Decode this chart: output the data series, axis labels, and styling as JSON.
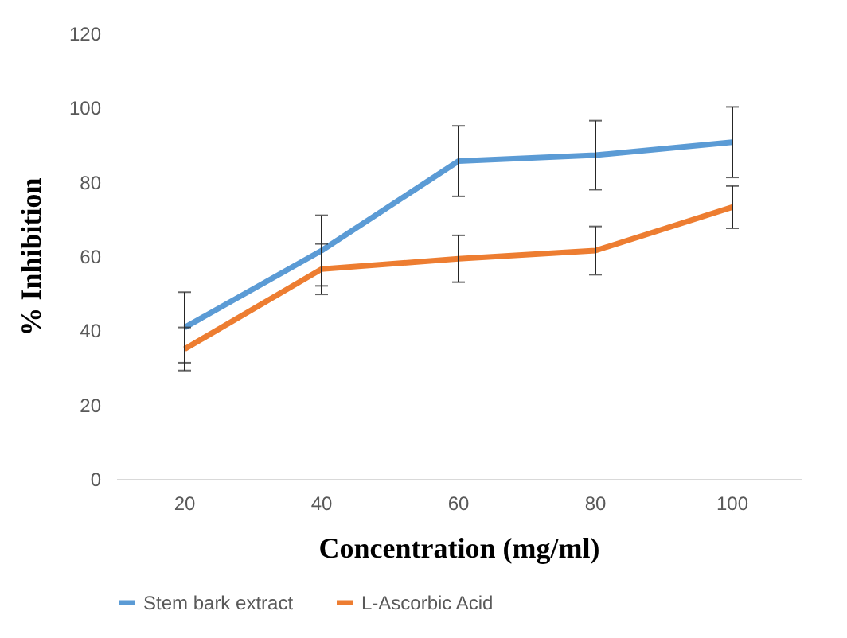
{
  "chart_data": {
    "type": "line",
    "xlabel": "Concentration (mg/ml)",
    "ylabel": "% Inhibition",
    "categories": [
      "20",
      "40",
      "60",
      "80",
      "100"
    ],
    "series": [
      {
        "name": "Stem bark extract",
        "color": "#5b9bd5",
        "values": [
          40.8,
          61.5,
          85.6,
          87.2,
          90.7
        ],
        "errors": [
          9.5,
          9.5,
          9.5,
          9.3,
          9.5
        ]
      },
      {
        "name": "L-Ascorbic Acid",
        "color": "#ed7d31",
        "values": [
          35,
          56.5,
          59.3,
          61.5,
          73.2
        ],
        "errors": [
          5.8,
          6.8,
          6.3,
          6.5,
          5.7
        ]
      }
    ],
    "ylim": [
      0,
      120
    ],
    "yticks": [
      0,
      20,
      40,
      60,
      80,
      100,
      120
    ],
    "grid": false,
    "legend": "bottom",
    "marker": "none",
    "line_style": "solid"
  }
}
